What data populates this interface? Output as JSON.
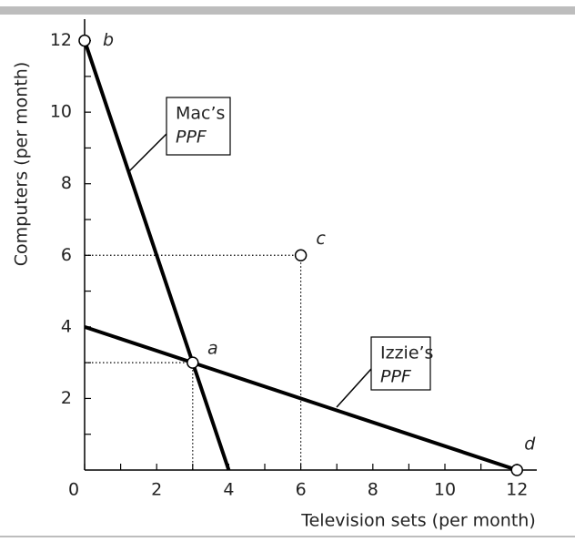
{
  "chart_data": {
    "type": "line",
    "x_label": "Television sets (per month)",
    "y_label": "Computers (per month)",
    "xlim": [
      0,
      12.55
    ],
    "ylim": [
      0,
      12.6
    ],
    "xticks": [
      0,
      2,
      4,
      6,
      8,
      10,
      12
    ],
    "xminor": [
      1,
      3,
      5,
      7,
      9,
      11
    ],
    "yticks": [
      2,
      4,
      6,
      8,
      10,
      12
    ],
    "yminor": [
      1,
      3,
      5,
      7,
      9,
      11
    ],
    "series": [
      {
        "name_lines": [
          "Mac’s",
          "PPF"
        ],
        "color": "#000000",
        "x": [
          0,
          4
        ],
        "values": [
          12,
          0
        ]
      },
      {
        "name_lines": [
          "Izzie’s",
          "PPF"
        ],
        "color": "#000000",
        "x": [
          0,
          12
        ],
        "values": [
          4,
          0
        ]
      }
    ],
    "points": [
      {
        "label": "a",
        "x": 3,
        "y": 3,
        "guides": true
      },
      {
        "label": "b",
        "x": 0,
        "y": 12,
        "guides": false
      },
      {
        "label": "c",
        "x": 6,
        "y": 6,
        "guides": true
      },
      {
        "label": "d",
        "x": 12,
        "y": 0,
        "guides": false
      }
    ]
  }
}
